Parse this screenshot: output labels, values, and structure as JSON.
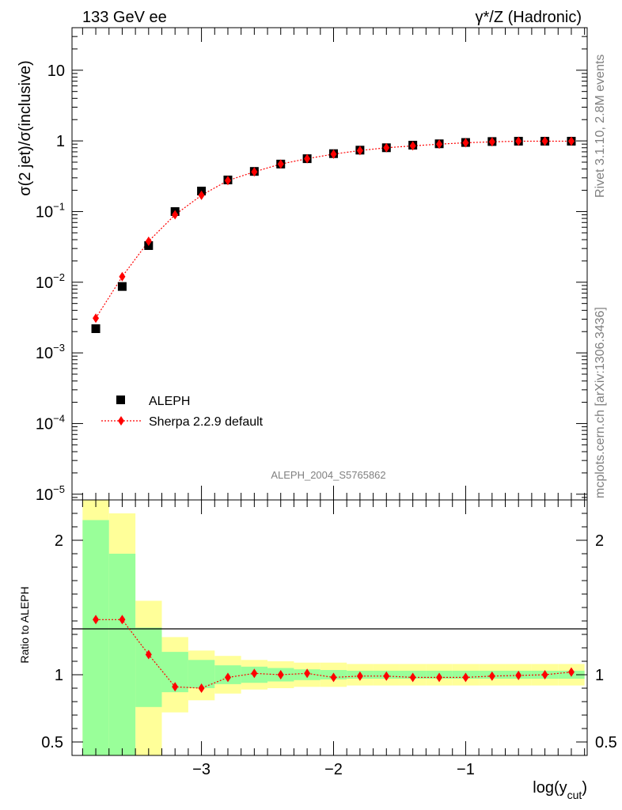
{
  "header": {
    "left": "133 GeV ee",
    "right": "γ*/Z (Hadronic)"
  },
  "side": {
    "rivet": "Rivet 3.1.10,  2.8M events",
    "mcplots": "mcplots.cern.ch [arXiv:1306.3436]"
  },
  "analysis_id": "ALEPH_2004_S5765862",
  "colors": {
    "data": "#000000",
    "mc": "#ff0000",
    "band_inner": "#99ff99",
    "band_outer": "#ffff99"
  },
  "chart_data": [
    {
      "type": "scatter",
      "yscale": "log",
      "ylabel": "σ(2 jet)/σ(inclusive)",
      "xlim": [
        -3.98,
        -0.08
      ],
      "ylim": [
        8.3e-06,
        40
      ],
      "yticks": [
        {
          "v": 1e-05,
          "b": "10",
          "e": "−5"
        },
        {
          "v": 0.0001,
          "b": "10",
          "e": "−4"
        },
        {
          "v": 0.001,
          "b": "10",
          "e": "−3"
        },
        {
          "v": 0.01,
          "b": "10",
          "e": "−2"
        },
        {
          "v": 0.1,
          "b": "10",
          "e": "−1"
        },
        {
          "v": 1,
          "b": "1",
          "e": ""
        },
        {
          "v": 10,
          "b": "10",
          "e": ""
        }
      ],
      "legend": {
        "placement": "bottom-left",
        "data_label": "ALEPH",
        "mc_label": "Sherpa 2.2.9 default"
      },
      "x": [
        -3.8,
        -3.6,
        -3.4,
        -3.2,
        -3.0,
        -2.8,
        -2.6,
        -2.4,
        -2.2,
        -2.0,
        -1.8,
        -1.6,
        -1.4,
        -1.2,
        -1.0,
        -0.8,
        -0.6,
        -0.4,
        -0.2
      ],
      "series": [
        {
          "name": "ALEPH",
          "marker": "square",
          "values": [
            0.0022,
            0.0087,
            0.033,
            0.1,
            0.195,
            0.28,
            0.37,
            0.47,
            0.56,
            0.66,
            0.74,
            0.8,
            0.87,
            0.91,
            0.95,
            0.98,
            0.99,
            0.99,
            0.99
          ]
        },
        {
          "name": "Sherpa 2.2.9 default",
          "marker": "diamond",
          "values": [
            0.0031,
            0.012,
            0.038,
            0.09,
            0.17,
            0.275,
            0.365,
            0.47,
            0.56,
            0.65,
            0.73,
            0.8,
            0.85,
            0.9,
            0.94,
            0.97,
            0.99,
            0.99,
            0.99
          ]
        }
      ]
    },
    {
      "type": "line",
      "ylabel": "Ratio to ALEPH",
      "xlabel": "log(y",
      "xlabel_sub": "cut",
      "xlabel_close": ")",
      "ylim": [
        0.4,
        2.3
      ],
      "yticks": [
        0.5,
        1,
        2
      ],
      "ytick_labels": [
        "0.5",
        "1",
        "2"
      ],
      "xticks": [
        -3,
        -2,
        -1
      ],
      "xtick_labels": [
        "−3",
        "−2",
        "−1"
      ],
      "reference": 1,
      "bins": [
        [
          -3.9,
          -3.7
        ],
        [
          -3.7,
          -3.5
        ],
        [
          -3.5,
          -3.3
        ],
        [
          -3.3,
          -3.1
        ],
        [
          -3.1,
          -2.9
        ],
        [
          -2.9,
          -2.7
        ],
        [
          -2.7,
          -2.5
        ],
        [
          -2.5,
          -2.3
        ],
        [
          -2.3,
          -2.1
        ],
        [
          -2.1,
          -1.9
        ],
        [
          -1.9,
          -1.7
        ],
        [
          -1.7,
          -1.5
        ],
        [
          -1.5,
          -1.3
        ],
        [
          -1.3,
          -1.1
        ],
        [
          -1.1,
          -0.9
        ],
        [
          -0.9,
          -0.7
        ],
        [
          -0.7,
          -0.5
        ],
        [
          -0.5,
          -0.3
        ],
        [
          -0.3,
          -0.1
        ]
      ],
      "band_inner": [
        [
          0.3,
          2.15
        ],
        [
          0.3,
          1.9
        ],
        [
          0.76,
          1.35
        ],
        [
          0.87,
          1.17
        ],
        [
          0.9,
          1.11
        ],
        [
          0.93,
          1.07
        ],
        [
          0.94,
          1.06
        ],
        [
          0.95,
          1.05
        ],
        [
          0.96,
          1.04
        ],
        [
          0.965,
          1.035
        ],
        [
          0.97,
          1.03
        ],
        [
          0.97,
          1.03
        ],
        [
          0.97,
          1.03
        ],
        [
          0.97,
          1.03
        ],
        [
          0.97,
          1.03
        ],
        [
          0.97,
          1.03
        ],
        [
          0.97,
          1.03
        ],
        [
          0.97,
          1.03
        ],
        [
          0.97,
          1.03
        ]
      ],
      "band_outer": [
        [
          0.3,
          2.3
        ],
        [
          0.3,
          2.2
        ],
        [
          0.4,
          1.55
        ],
        [
          0.72,
          1.28
        ],
        [
          0.81,
          1.18
        ],
        [
          0.86,
          1.14
        ],
        [
          0.89,
          1.11
        ],
        [
          0.9,
          1.1
        ],
        [
          0.91,
          1.09
        ],
        [
          0.91,
          1.09
        ],
        [
          0.92,
          1.08
        ],
        [
          0.92,
          1.08
        ],
        [
          0.92,
          1.08
        ],
        [
          0.92,
          1.08
        ],
        [
          0.92,
          1.08
        ],
        [
          0.92,
          1.08
        ],
        [
          0.92,
          1.08
        ],
        [
          0.92,
          1.08
        ],
        [
          0.92,
          1.08
        ]
      ],
      "x": [
        -3.8,
        -3.6,
        -3.4,
        -3.2,
        -3.0,
        -2.8,
        -2.6,
        -2.4,
        -2.2,
        -2.0,
        -1.8,
        -1.6,
        -1.4,
        -1.2,
        -1.0,
        -0.8,
        -0.6,
        -0.4,
        -0.2
      ],
      "series": [
        {
          "name": "Sherpa 2.2.9 default",
          "values": [
            1.41,
            1.41,
            1.15,
            0.91,
            0.9,
            0.98,
            1.01,
            1.0,
            1.01,
            0.98,
            0.99,
            0.99,
            0.98,
            0.98,
            0.98,
            0.99,
            0.995,
            1.0,
            1.02
          ]
        }
      ]
    }
  ]
}
